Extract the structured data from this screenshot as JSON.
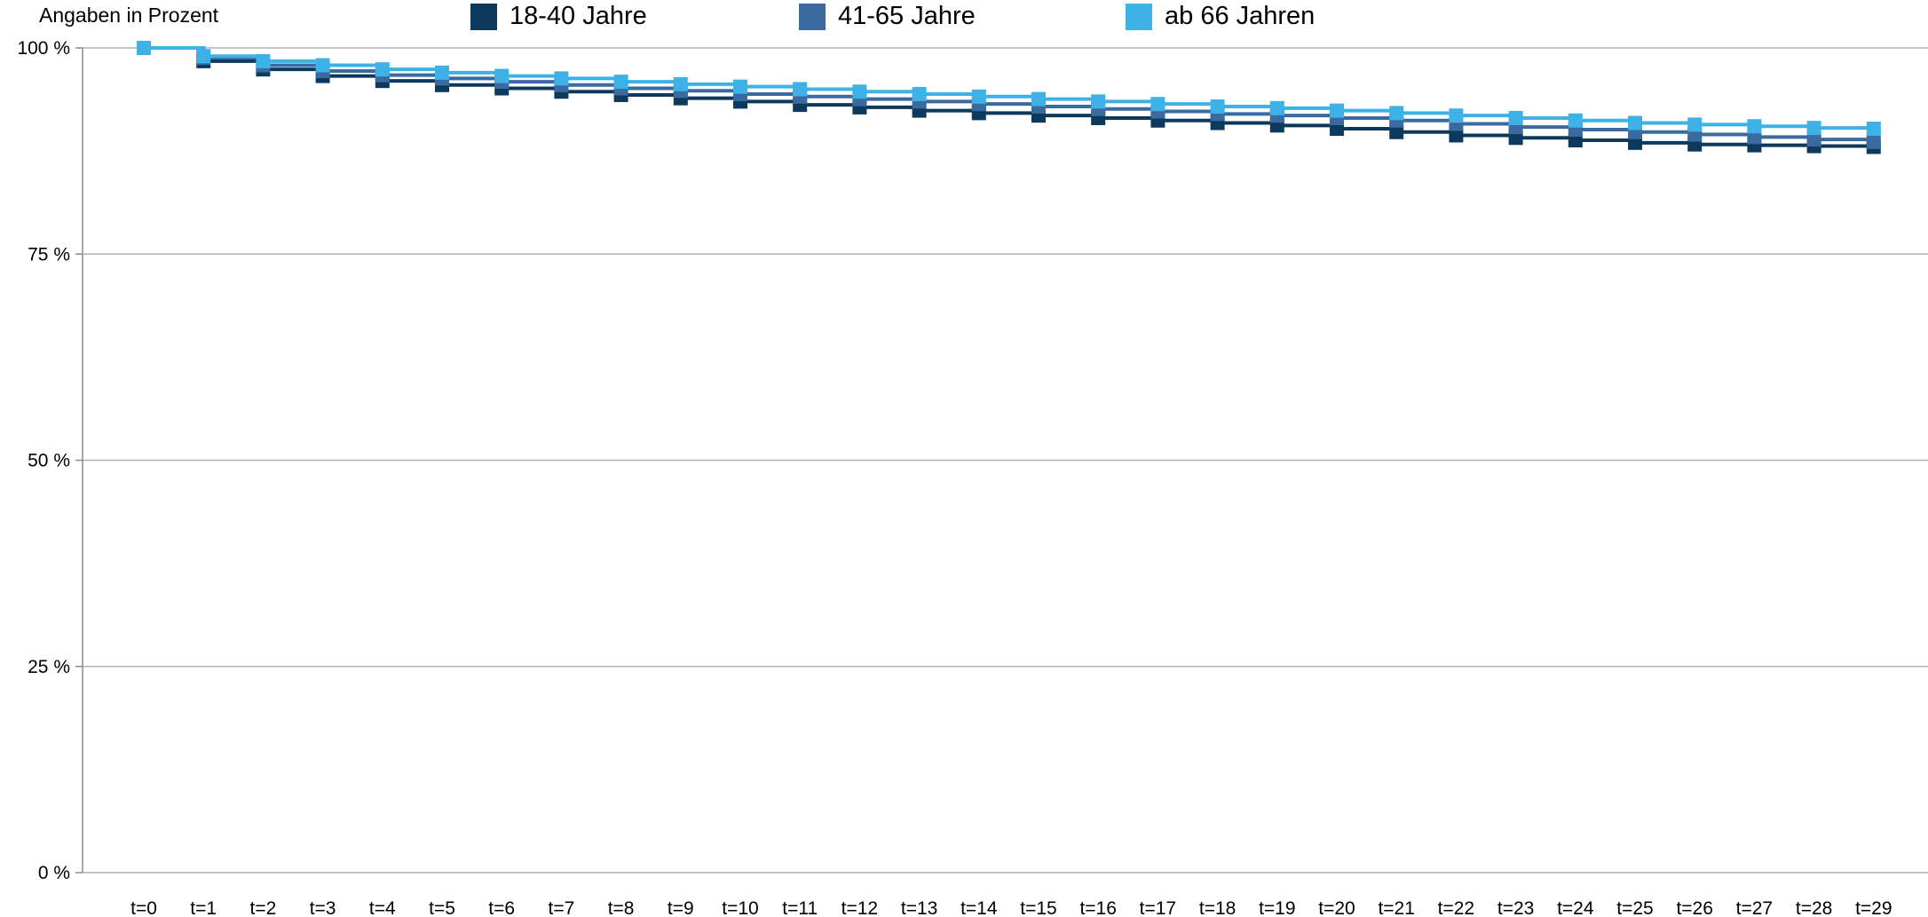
{
  "chart_data": {
    "type": "line",
    "title": "",
    "unit_note": "Angaben in Prozent",
    "xlabel": "",
    "ylabel": "",
    "ylim": [
      0,
      100
    ],
    "y_ticks": [
      {
        "value": 0,
        "label": "0 %"
      },
      {
        "value": 25,
        "label": "25 %"
      },
      {
        "value": 50,
        "label": "50 %"
      },
      {
        "value": 75,
        "label": "75 %"
      },
      {
        "value": 100,
        "label": "100 %"
      }
    ],
    "grid": "horizontal",
    "legend_position": "top",
    "line_style": "step",
    "marker": "square",
    "categories": [
      "t=0",
      "t=1",
      "t=2",
      "t=3",
      "t=4",
      "t=5",
      "t=6",
      "t=7",
      "t=8",
      "t=9",
      "t=10",
      "t=11",
      "t=12",
      "t=13",
      "t=14",
      "t=15",
      "t=16",
      "t=17",
      "t=18",
      "t=19",
      "t=20",
      "t=21",
      "t=22",
      "t=23",
      "t=24",
      "t=25",
      "t=26",
      "t=27",
      "t=28",
      "t=29"
    ],
    "series": [
      {
        "name": "18-40 Jahre",
        "color": "#0d3a5c",
        "values": [
          100,
          98.4,
          97.4,
          96.6,
          96.0,
          95.5,
          95.1,
          94.7,
          94.3,
          93.9,
          93.5,
          93.1,
          92.8,
          92.4,
          92.1,
          91.8,
          91.5,
          91.2,
          90.9,
          90.6,
          90.2,
          89.8,
          89.4,
          89.1,
          88.8,
          88.5,
          88.3,
          88.2,
          88.1,
          88.0
        ]
      },
      {
        "name": "41-65 Jahre",
        "color": "#3a6aa0",
        "values": [
          100,
          98.8,
          97.9,
          97.2,
          96.7,
          96.3,
          95.9,
          95.5,
          95.1,
          94.8,
          94.4,
          94.1,
          93.8,
          93.5,
          93.2,
          92.9,
          92.6,
          92.3,
          92.0,
          91.8,
          91.5,
          91.2,
          90.8,
          90.4,
          90.1,
          89.8,
          89.5,
          89.2,
          88.9,
          88.6
        ]
      },
      {
        "name": "ab 66 Jahren",
        "color": "#3eb1e6",
        "values": [
          100,
          99.0,
          98.4,
          97.9,
          97.4,
          97.0,
          96.6,
          96.3,
          95.9,
          95.6,
          95.3,
          95.0,
          94.7,
          94.4,
          94.1,
          93.8,
          93.5,
          93.2,
          92.9,
          92.7,
          92.4,
          92.1,
          91.8,
          91.5,
          91.2,
          90.9,
          90.7,
          90.5,
          90.3,
          90.2
        ]
      }
    ]
  }
}
